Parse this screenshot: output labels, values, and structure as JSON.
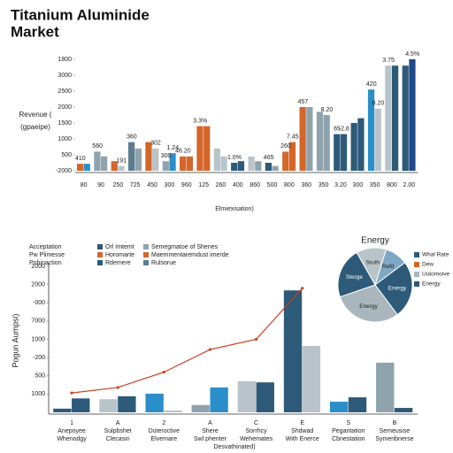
{
  "title_lines": [
    "Titanium Aluminide",
    "Market"
  ],
  "chart_data": [
    {
      "type": "bar",
      "ylabel_lines": [
        "Revenue (",
        "(gpaeipe)"
      ],
      "xlabel": "Elmiexisation)",
      "categories": [
        "80",
        "90",
        "250",
        "725",
        "450",
        "300",
        "960",
        "125",
        "260",
        "400",
        "860",
        "500",
        "800",
        "360",
        "350",
        "3.20",
        "300",
        "350",
        "800",
        "2.00"
      ],
      "series": [
        {
          "values": [
            220,
            600,
            300,
            900,
            900,
            300,
            450,
            1400,
            700,
            250,
            450,
            250,
            600,
            2000,
            1850,
            1150,
            1500,
            2550,
            3300,
            3300
          ],
          "colors": [
            "#d4662a",
            "#8fa3ad",
            "#d4662a",
            "#5c7d8f",
            "#d4662a",
            "#8fa3ad",
            "#d4662a",
            "#d4662a",
            "#b8c4ca",
            "#2d5a78",
            "#b8c4ca",
            "#2d5a78",
            "#d4662a",
            "#d4662a",
            "#8fa3ad",
            "#2d5a78",
            "#2d5a78",
            "#2a8fc9",
            "#b8c4ca",
            "#2d5a78"
          ]
        },
        {
          "values": [
            220,
            450,
            150,
            700,
            700,
            550,
            450,
            1400,
            450,
            300,
            300,
            150,
            900,
            2000,
            1750,
            1150,
            1650,
            1950,
            3300,
            3500
          ],
          "colors": [
            "#2a8fc9",
            "#8fa3ad",
            "#b8c4ca",
            "#8fa3ad",
            "#b8c4ca",
            "#2a8fc9",
            "#d4662a",
            "#d4662a",
            "#b8c4ca",
            "#2d5a78",
            "#8fa3ad",
            "#8fa3ad",
            "#d4662a",
            "#8fa3ad",
            "#8fa3ad",
            "#2d5a78",
            "#2d5a78",
            "#b8c4ca",
            "#2d5a78",
            "#1f4a8a"
          ]
        }
      ],
      "annotations": [
        {
          "text": "410",
          "series": 0,
          "index": 0
        },
        {
          "text": "560",
          "series": 0,
          "index": 1
        },
        {
          "text": "191",
          "series": 1,
          "index": 2
        },
        {
          "text": "360",
          "series": 0,
          "index": 3
        },
        {
          "text": "302",
          "series": 1,
          "index": 4
        },
        {
          "text": "300",
          "series": 0,
          "index": 5
        },
        {
          "text": "1.24",
          "series": 1,
          "index": 5
        },
        {
          "text": "46.20",
          "series": 0,
          "index": 6
        },
        {
          "text": "3.3%",
          "series": 0,
          "index": 7
        },
        {
          "text": "1.0%",
          "series": 0,
          "index": 9
        },
        {
          "text": "465",
          "series": 0,
          "index": 11
        },
        {
          "text": "260",
          "series": 0,
          "index": 12
        },
        {
          "text": "7.45",
          "series": 1,
          "index": 12
        },
        {
          "text": "457",
          "series": 0,
          "index": 13
        },
        {
          "text": "8.20",
          "series": 1,
          "index": 14
        },
        {
          "text": "65",
          "series": 0,
          "index": 15
        },
        {
          "text": "-2.8",
          "series": 1,
          "index": 15
        },
        {
          "text": "420",
          "series": 0,
          "index": 17
        },
        {
          "text": "8.20",
          "series": 1,
          "index": 17
        },
        {
          "text": "3.75",
          "series": 0,
          "index": 18
        },
        {
          "text": "4.5%",
          "series": 1,
          "index": 19
        }
      ],
      "ylim": [
        0,
        3500
      ],
      "yticks": [
        {
          "value": 3500,
          "label": "1800"
        },
        3000,
        2500,
        2000,
        1500,
        1000,
        500,
        {
          "value": 0,
          "label": "-2000"
        }
      ]
    },
    {
      "type": "bar",
      "ylabel": "Pogun Aumpsi)",
      "xlabel": "Desvathinated)",
      "legend_notes": [
        "Acceptation",
        "Pw Plimesse",
        "Pnbinaction"
      ],
      "legend": [
        {
          "name": "Orl Imtemt",
          "color": "#2d5a78"
        },
        {
          "name": "Horomarte",
          "color": "#d4662a"
        },
        {
          "name": "Rdemere",
          "color": "#2d5a78"
        },
        {
          "name": "Semegmatoe of Shenes",
          "color": "#8fa3ad"
        },
        {
          "name": "Maemmentaremdust imerde",
          "color": "#d4662a"
        },
        {
          "name": "Rulsorue",
          "color": "#5c7d8f"
        }
      ],
      "categories": [
        [
          "1",
          "Anepoyee",
          "Whenodgy"
        ],
        [
          "A",
          "Sulpbshet",
          "Clecasin"
        ],
        [
          "2",
          "Duteroctive",
          "Elvemare"
        ],
        [
          "A",
          "Shere",
          "Swl phenter"
        ],
        [
          "C",
          "Sorrhcy",
          "Wehemates"
        ],
        [
          "E",
          "Shdwad",
          "With Enerce"
        ],
        [
          "S",
          "Pegantation",
          "Cbnestation"
        ],
        [
          "B",
          "Semeusise",
          "Symeribnerse"
        ]
      ],
      "series": [
        {
          "values": [
            50,
            180,
            255,
            100,
            425,
            1670,
            145,
            680
          ],
          "colors": [
            "#2d5a78",
            "#b8c4ca",
            "#2a8fc9",
            "#8fa3ad",
            "#b8c4ca",
            "#2d5a78",
            "#2a8fc9",
            "#8fa3ad"
          ]
        },
        {
          "values": [
            190,
            220,
            25,
            340,
            410,
            910,
            205,
            60
          ],
          "colors": [
            "#2d5a78",
            "#2d5a78",
            "#b8c4ca",
            "#2a8fc9",
            "#2d5a78",
            "#b8c4ca",
            "#2d5a78",
            "#2d5a78"
          ]
        }
      ],
      "line": {
        "color": "#c8401e",
        "values": [
          265,
          340,
          550,
          860,
          1000,
          1700,
          null,
          null
        ]
      },
      "ylim": [
        0,
        2000
      ],
      "yticks": [
        2000,
        {
          "value": 1750,
          "label": "2000"
        },
        {
          "value": 1500,
          "label": "-000"
        },
        {
          "value": 1250,
          "label": "7000"
        },
        1000,
        {
          "value": 750,
          "label": "-200"
        },
        500,
        {
          "value": 250,
          "label": "1000"
        }
      ]
    },
    {
      "type": "pie",
      "title": "Energy",
      "labels": [
        "Refd",
        "Energy",
        "Energy",
        "Sterge",
        "Sruth"
      ],
      "values": [
        10,
        25,
        30,
        22,
        13
      ],
      "colors": [
        "#7fa8c4",
        "#2d5a78",
        "#a9b6bd",
        "#2d5a78",
        "#b8c4ca"
      ],
      "legend": [
        {
          "name": "Whal Rate",
          "color": "#2d5a78"
        },
        {
          "name": "Dew",
          "color": "#d4662a"
        },
        {
          "name": "Uutomoive",
          "color": "#a9b6bd"
        },
        {
          "name": "Energy",
          "color": "#2d5a78"
        }
      ]
    }
  ]
}
